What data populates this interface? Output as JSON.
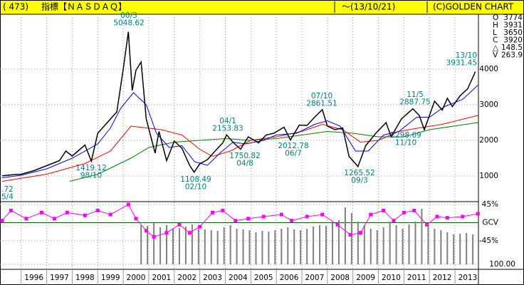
{
  "header": {
    "code": "( 473)",
    "title": "指標【ＮＡＳＤＡＱ】",
    "date": "～(13/10/21)",
    "copyright": "(C)GOLDEN CHART"
  },
  "quote": [
    {
      "label": "O",
      "value": 3774
    },
    {
      "label": "H",
      "value": 3931
    },
    {
      "label": "L",
      "value": 3650
    },
    {
      "label": "C",
      "value": 3920
    },
    {
      "label": "△",
      "value": 148.5
    },
    {
      "label": "V",
      "value": 263.9
    }
  ],
  "chart_data": {
    "type": "line",
    "xlim": [
      1995.17,
      2013.92
    ],
    "xticks": [
      1996,
      1997,
      1998,
      1999,
      2000,
      2001,
      2002,
      2003,
      2004,
      2005,
      2006,
      2007,
      2008,
      2009,
      2010,
      2011,
      2012,
      2013
    ],
    "ylim": [
      280,
      5540
    ],
    "yticks": [
      1000,
      2000,
      3000,
      4000
    ],
    "grid": true,
    "series": [
      {
        "color": "#000000",
        "x": [
          1995.25,
          1995.75,
          1996.0,
          1996.5,
          1997.0,
          1997.5,
          1997.75,
          1998.0,
          1998.5,
          1998.75,
          1999.0,
          1999.5,
          1999.75,
          2000.0,
          2000.2,
          2000.35,
          2000.5,
          2000.7,
          2000.9,
          2001.25,
          2001.4,
          2001.7,
          2002.0,
          2002.3,
          2002.6,
          2002.78,
          2003.0,
          2003.3,
          2003.6,
          2003.9,
          2004.05,
          2004.3,
          2004.6,
          2004.9,
          2005.3,
          2005.6,
          2005.9,
          2006.3,
          2006.55,
          2006.9,
          2007.2,
          2007.5,
          2007.8,
          2008.0,
          2008.3,
          2008.6,
          2008.85,
          2009.2,
          2009.5,
          2009.9,
          2010.3,
          2010.5,
          2010.9,
          2011.35,
          2011.6,
          2011.8,
          2012.2,
          2012.5,
          2012.7,
          2012.9,
          2013.2,
          2013.5,
          2013.8
        ],
        "values": [
          1005,
          1040,
          1050,
          1150,
          1290,
          1430,
          1700,
          1560,
          1870,
          1419,
          2200,
          2600,
          2800,
          4000,
          5048,
          3400,
          3970,
          4200,
          2600,
          1640,
          2250,
          1430,
          1980,
          1780,
          1300,
          1108,
          1340,
          1460,
          1700,
          1930,
          2153,
          1950,
          1750,
          2100,
          1930,
          2150,
          2200,
          2370,
          2012,
          2430,
          2420,
          2650,
          2861,
          2400,
          2300,
          2350,
          1550,
          1265,
          1850,
          2200,
          2500,
          2100,
          2600,
          2887,
          2700,
          2298,
          3100,
          2850,
          3180,
          2950,
          3250,
          3450,
          3931
        ]
      },
      {
        "color": "#0000ff",
        "x": [
          1995.25,
          1996.0,
          1997.0,
          1998.0,
          1999.0,
          1999.5,
          1999.9,
          2000.4,
          2000.9,
          2001.3,
          2001.8,
          2002.3,
          2002.8,
          2003.3,
          2003.8,
          2004.3,
          2004.8,
          2005.5,
          2006.0,
          2006.8,
          2007.5,
          2008.0,
          2008.5,
          2009.1,
          2009.6,
          2010.2,
          2010.8,
          2011.5,
          2012.0,
          2012.6,
          2013.3,
          2013.9
        ],
        "values": [
          950,
          1020,
          1200,
          1500,
          1900,
          2350,
          2900,
          3340,
          3000,
          2200,
          1800,
          1850,
          1400,
          1300,
          1650,
          1950,
          1900,
          2000,
          2150,
          2200,
          2450,
          2550,
          2400,
          1700,
          1700,
          2150,
          2250,
          2650,
          2650,
          2950,
          3150,
          3550
        ]
      },
      {
        "color": "#ff0000",
        "x": [
          1995.25,
          1997.0,
          1998.5,
          1999.5,
          2000.3,
          2000.9,
          2001.5,
          2002.3,
          2003.0,
          2003.5,
          2004.2,
          2005.0,
          2006.0,
          2007.0,
          2007.8,
          2008.6,
          2009.3,
          2010.0,
          2010.8,
          2011.6,
          2012.5,
          2013.9
        ],
        "values": [
          850,
          1050,
          1350,
          1700,
          2400,
          2350,
          2300,
          2150,
          1750,
          1550,
          1700,
          2000,
          2100,
          2250,
          2450,
          2300,
          1950,
          2000,
          2250,
          2350,
          2450,
          2700
        ]
      },
      {
        "color": "#008000",
        "x": [
          1997.9,
          1999.0,
          2000.3,
          2001.0,
          2002.0,
          2003.0,
          2004.0,
          2005.0,
          2006.0,
          2007.0,
          2008.0,
          2009.0,
          2010.0,
          2011.0,
          2012.0,
          2013.9
        ],
        "values": [
          850,
          1050,
          1500,
          1800,
          1950,
          2000,
          2050,
          2000,
          2050,
          2150,
          2250,
          2200,
          2100,
          2100,
          2300,
          2500
        ]
      }
    ],
    "annotations": [
      {
        "date": "5/4",
        "value": ".72"
      },
      {
        "date": "00/3",
        "value": 5048.62
      },
      {
        "date": "98/10",
        "value": 1419.12
      },
      {
        "date": "02/10",
        "value": 1108.49
      },
      {
        "date": "04/1",
        "value": 2153.83
      },
      {
        "date": "04/8",
        "value": 1750.82
      },
      {
        "date": "06/7",
        "value": 2012.78
      },
      {
        "date": "07/10",
        "value": 2861.51
      },
      {
        "date": "09/3",
        "value": 1265.52
      },
      {
        "date": "11/5",
        "value": 2887.75
      },
      {
        "date": "11/10",
        "value": 2298.69
      },
      {
        "date": "13/10",
        "value": 3931.45
      }
    ],
    "oscillator": {
      "color": "#ff00ff",
      "ylim": [
        -115.5,
        52
      ],
      "yticks": [
        {
          "value": 45,
          "label": "45%"
        },
        {
          "value": 0,
          "label": "GCV"
        },
        {
          "value": -45,
          "label": "-45%"
        }
      ],
      "x": [
        1995.25,
        1995.6,
        1996.2,
        1996.8,
        1997.3,
        1997.8,
        1998.5,
        1999.0,
        1999.5,
        2000.2,
        2000.5,
        2000.9,
        2001.2,
        2001.7,
        2002.2,
        2002.6,
        2003.0,
        2003.5,
        2003.9,
        2004.4,
        2004.9,
        2005.5,
        2006.2,
        2006.6,
        2007.2,
        2007.8,
        2008.4,
        2008.9,
        2009.3,
        2009.7,
        2010.2,
        2010.6,
        2011.0,
        2011.4,
        2011.9,
        2012.3,
        2012.7,
        2013.3,
        2013.9
      ],
      "values": [
        5,
        30,
        10,
        25,
        10,
        25,
        18,
        30,
        20,
        45,
        10,
        -20,
        -35,
        -25,
        -5,
        -25,
        -10,
        25,
        30,
        5,
        10,
        15,
        20,
        5,
        15,
        20,
        -5,
        -30,
        -25,
        20,
        30,
        5,
        25,
        30,
        -5,
        15,
        12,
        15,
        22
      ]
    },
    "volume": {
      "color": "#808080",
      "ylim": [
        0,
        88
      ],
      "yticks": [
        {
          "value": 0,
          "label": "100.00"
        }
      ],
      "x": [
        2000.7,
        2000.95,
        2001.2,
        2001.45,
        2001.7,
        2001.95,
        2002.2,
        2002.45,
        2002.7,
        2002.95,
        2003.2,
        2003.45,
        2003.7,
        2003.95,
        2004.2,
        2004.45,
        2004.7,
        2004.95,
        2005.2,
        2005.45,
        2005.7,
        2005.95,
        2006.2,
        2006.45,
        2006.7,
        2006.95,
        2007.2,
        2007.45,
        2007.7,
        2007.95,
        2008.2,
        2008.45,
        2008.7,
        2008.95,
        2009.2,
        2009.45,
        2009.7,
        2009.95,
        2010.2,
        2010.45,
        2010.7,
        2010.95,
        2011.2,
        2011.45,
        2011.7,
        2011.95,
        2012.2,
        2012.45,
        2012.7,
        2012.95,
        2013.2,
        2013.45,
        2013.7
      ],
      "values": [
        55,
        54,
        58,
        52,
        55,
        50,
        51,
        53,
        56,
        50,
        49,
        48,
        47,
        52,
        55,
        50,
        49,
        48,
        45,
        47,
        46,
        48,
        50,
        52,
        49,
        48,
        50,
        53,
        55,
        54,
        58,
        62,
        80,
        72,
        60,
        55,
        50,
        48,
        52,
        60,
        55,
        50,
        56,
        60,
        78,
        55,
        50,
        48,
        45,
        42,
        43,
        44,
        42
      ]
    }
  }
}
